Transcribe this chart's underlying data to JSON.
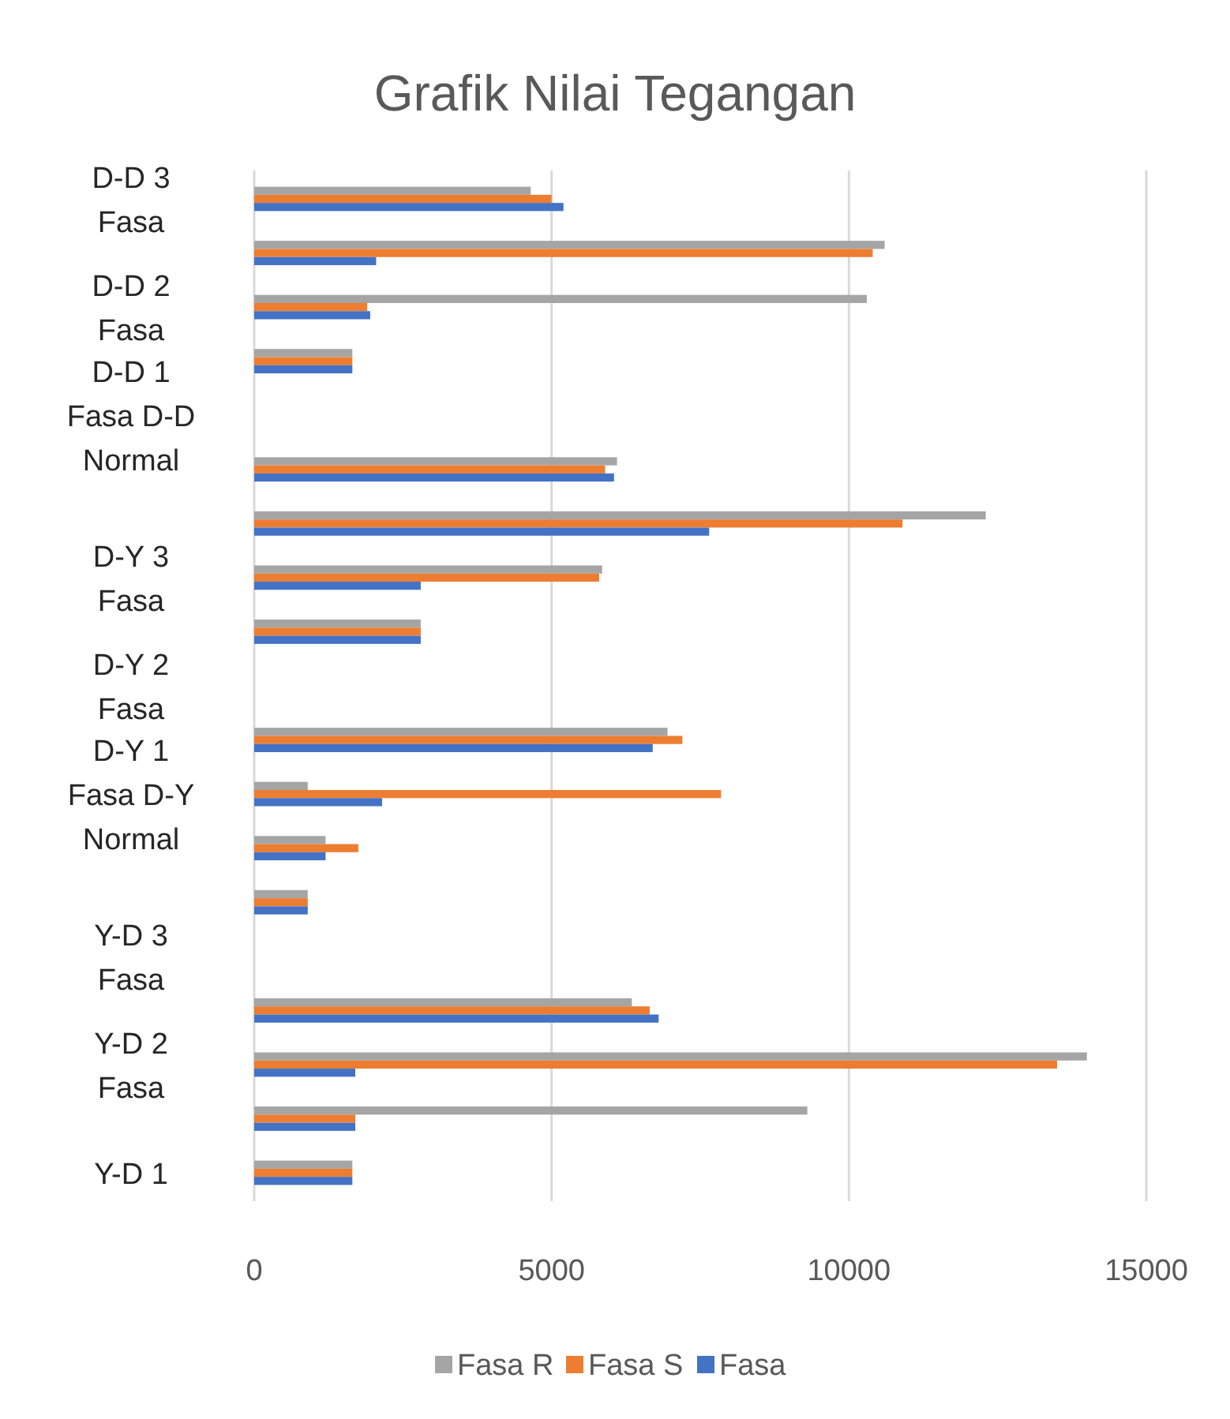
{
  "chart_data": {
    "type": "bar",
    "orientation": "horizontal",
    "title": "Grafik Nilai Tegangan",
    "categories": [
      "D-D 3 Fasa",
      null,
      "D-D 2 Fasa",
      null,
      "D-D 1 Fasa D-D Normal",
      null,
      null,
      "D-Y 3 Fasa",
      null,
      "D-Y 2 Fasa",
      null,
      "D-Y 1 Fasa D-Y Normal",
      null,
      null,
      "Y-D 3 Fasa",
      null,
      "Y-D 2 Fasa",
      null,
      "Y-D 1"
    ],
    "series": [
      {
        "name": "Fasa R",
        "color": "#a5a5a5",
        "values": [
          4650,
          10600,
          10300,
          1650,
          null,
          6100,
          12300,
          5850,
          2800,
          null,
          6950,
          900,
          1200,
          900,
          null,
          6350,
          14000,
          9300,
          1650
        ]
      },
      {
        "name": "Fasa S",
        "color": "#ed7d31",
        "values": [
          5000,
          10400,
          1900,
          1650,
          null,
          5900,
          10900,
          5800,
          2800,
          null,
          7200,
          7850,
          1750,
          900,
          null,
          6650,
          13500,
          1700,
          1650
        ]
      },
      {
        "name": "Fasa",
        "color": "#4472c4",
        "values": [
          5200,
          2050,
          1950,
          1650,
          null,
          6050,
          7650,
          2800,
          2800,
          null,
          6700,
          2150,
          1200,
          900,
          null,
          6800,
          1700,
          1700,
          1650
        ]
      }
    ],
    "xlim": [
      0,
      15000
    ],
    "xticks": [
      0,
      5000,
      10000,
      15000
    ],
    "grid": "x",
    "legend": "bottom"
  }
}
